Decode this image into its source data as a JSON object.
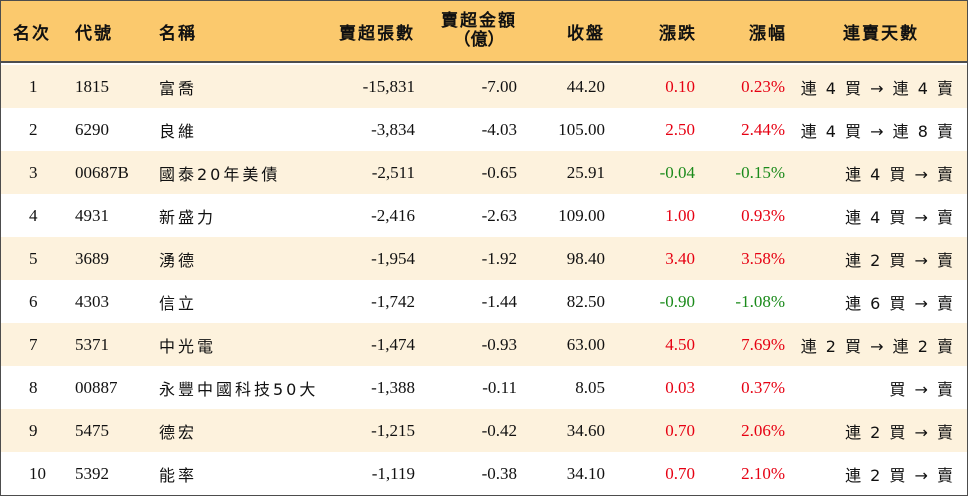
{
  "header": {
    "rank": "名次",
    "code": "代號",
    "name": "名稱",
    "net_sell_lots": "賣超張數",
    "net_sell_amount_line1": "賣超金額",
    "net_sell_amount_line2": "（億）",
    "close": "收盤",
    "change": "漲跌",
    "change_pct": "漲幅",
    "streak": "連賣天數"
  },
  "colors": {
    "header_bg": "#fbc96d",
    "band_bg": "#fdf2dd",
    "up": "#e60012",
    "down": "#1a8a1a"
  },
  "rows": [
    {
      "rank": "1",
      "code": "1815",
      "name": "富喬",
      "lots": "-15,831",
      "amount": "-7.00",
      "close": "44.20",
      "change": "0.10",
      "pct": "0.23%",
      "dir": "up",
      "streak": "連 4 買 → 連 4 賣"
    },
    {
      "rank": "2",
      "code": "6290",
      "name": "良維",
      "lots": "-3,834",
      "amount": "-4.03",
      "close": "105.00",
      "change": "2.50",
      "pct": "2.44%",
      "dir": "up",
      "streak": "連 4 買 → 連 8 賣"
    },
    {
      "rank": "3",
      "code": "00687B",
      "name": "國泰20年美債",
      "lots": "-2,511",
      "amount": "-0.65",
      "close": "25.91",
      "change": "-0.04",
      "pct": "-0.15%",
      "dir": "down",
      "streak": "連 4 買 → 賣"
    },
    {
      "rank": "4",
      "code": "4931",
      "name": "新盛力",
      "lots": "-2,416",
      "amount": "-2.63",
      "close": "109.00",
      "change": "1.00",
      "pct": "0.93%",
      "dir": "up",
      "streak": "連 4 買 → 賣"
    },
    {
      "rank": "5",
      "code": "3689",
      "name": "湧德",
      "lots": "-1,954",
      "amount": "-1.92",
      "close": "98.40",
      "change": "3.40",
      "pct": "3.58%",
      "dir": "up",
      "streak": "連 2 買 → 賣"
    },
    {
      "rank": "6",
      "code": "4303",
      "name": "信立",
      "lots": "-1,742",
      "amount": "-1.44",
      "close": "82.50",
      "change": "-0.90",
      "pct": "-1.08%",
      "dir": "down",
      "streak": "連 6 買 → 賣"
    },
    {
      "rank": "7",
      "code": "5371",
      "name": "中光電",
      "lots": "-1,474",
      "amount": "-0.93",
      "close": "63.00",
      "change": "4.50",
      "pct": "7.69%",
      "dir": "up",
      "streak": "連 2 買 → 連 2 賣"
    },
    {
      "rank": "8",
      "code": "00887",
      "name": "永豐中國科技50大",
      "lots": "-1,388",
      "amount": "-0.11",
      "close": "8.05",
      "change": "0.03",
      "pct": "0.37%",
      "dir": "up",
      "streak": "買 → 賣"
    },
    {
      "rank": "9",
      "code": "5475",
      "name": "德宏",
      "lots": "-1,215",
      "amount": "-0.42",
      "close": "34.60",
      "change": "0.70",
      "pct": "2.06%",
      "dir": "up",
      "streak": "連 2 買 → 賣"
    },
    {
      "rank": "10",
      "code": "5392",
      "name": "能率",
      "lots": "-1,119",
      "amount": "-0.38",
      "close": "34.10",
      "change": "0.70",
      "pct": "2.10%",
      "dir": "up",
      "streak": "連 2 買 → 賣"
    }
  ]
}
